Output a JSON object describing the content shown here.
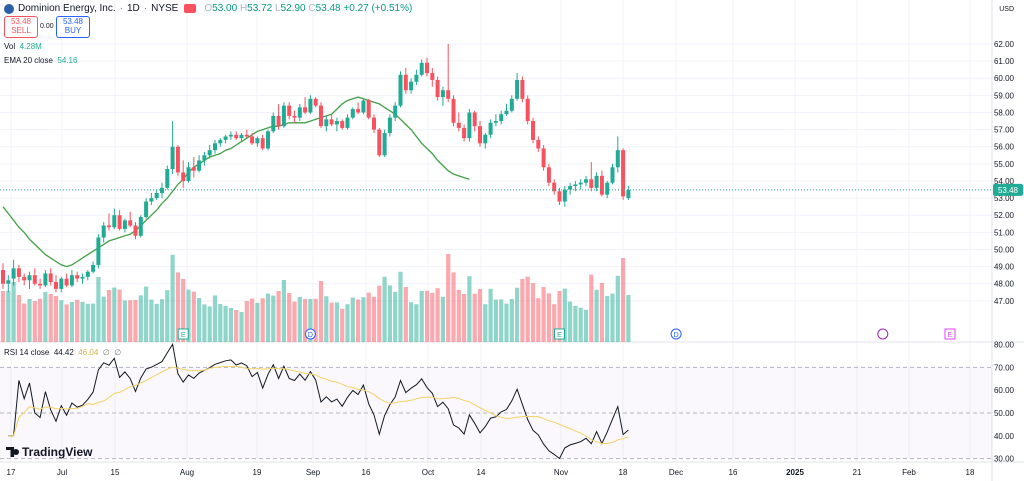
{
  "header": {
    "symbol": "Dominion Energy, Inc.",
    "interval": "1D",
    "exchange": "NYSE",
    "ohlc": {
      "o": "53.00",
      "h": "53.72",
      "l": "52.90",
      "c": "53.48",
      "change": "+0.27 (+0.51%)"
    }
  },
  "trade": {
    "sell_price": "53.48",
    "sell_label": "SELL",
    "buy_price": "53.48",
    "buy_label": "BUY",
    "spread": "0.00"
  },
  "indicators": {
    "vol_label": "Vol",
    "vol_value": "4.28M",
    "ema_label": "EMA 20 close",
    "ema_value": "54.16",
    "rsi_label": "RSI 14 close",
    "rsi_value": "44.42",
    "rsi_ma_value": "46.04",
    "rsi_extra1": "∅",
    "rsi_extra2": "∅"
  },
  "currency": "USD",
  "logo_text": "TradingView",
  "colors": {
    "up": "#22ab94",
    "down": "#f7525f",
    "ema": "#43a047",
    "rsi": "#131722",
    "rsi_ma": "#f2d267",
    "grid": "#f0f3fa"
  },
  "chart_data": {
    "type": "candlestick",
    "price_axis": {
      "ticks": [
        "62.00",
        "61.00",
        "60.00",
        "59.00",
        "58.00",
        "57.00",
        "56.00",
        "55.00",
        "54.00",
        "53.00",
        "52.00",
        "51.00",
        "50.00",
        "49.00",
        "48.00",
        "47.00"
      ],
      "last_price": "53.48",
      "ylim": [
        46.7,
        62.7
      ]
    },
    "rsi_axis": {
      "ticks": [
        "80.00",
        "70.00",
        "60.00",
        "50.00",
        "40.00",
        "30.00"
      ],
      "ylim": [
        25,
        82
      ]
    },
    "x_labels": [
      "17",
      "Jul",
      "15",
      "Aug",
      "19",
      "Sep",
      "16",
      "Oct",
      "14",
      "Nov",
      "18",
      "Dec",
      "16",
      "2025",
      "21",
      "Feb",
      "18"
    ],
    "events": [
      {
        "type": "E",
        "index": 34
      },
      {
        "type": "D",
        "index": 58
      },
      {
        "type": "E",
        "index": 105
      },
      {
        "type": "D",
        "index": 127
      },
      {
        "type": "flash",
        "index": 166
      },
      {
        "type": "E",
        "index": 178
      }
    ],
    "candles": [
      {
        "o": 48.8,
        "h": 49.2,
        "l": 47.7,
        "c": 48.0
      },
      {
        "o": 48.0,
        "h": 48.5,
        "l": 47.5,
        "c": 48.2
      },
      {
        "o": 48.3,
        "h": 49.4,
        "l": 47.9,
        "c": 48.9
      },
      {
        "o": 48.9,
        "h": 49.1,
        "l": 48.1,
        "c": 48.4
      },
      {
        "o": 48.4,
        "h": 48.6,
        "l": 47.9,
        "c": 48.2
      },
      {
        "o": 48.2,
        "h": 48.7,
        "l": 47.7,
        "c": 48.5
      },
      {
        "o": 48.5,
        "h": 48.9,
        "l": 47.9,
        "c": 48.0
      },
      {
        "o": 48.0,
        "h": 48.3,
        "l": 47.7,
        "c": 47.9
      },
      {
        "o": 47.9,
        "h": 48.8,
        "l": 47.8,
        "c": 48.6
      },
      {
        "o": 48.6,
        "h": 48.9,
        "l": 47.9,
        "c": 48.1
      },
      {
        "o": 48.1,
        "h": 48.5,
        "l": 47.5,
        "c": 47.7
      },
      {
        "o": 47.7,
        "h": 48.4,
        "l": 47.5,
        "c": 48.3
      },
      {
        "o": 48.3,
        "h": 48.6,
        "l": 47.8,
        "c": 47.9
      },
      {
        "o": 47.9,
        "h": 48.8,
        "l": 47.8,
        "c": 48.5
      },
      {
        "o": 48.5,
        "h": 48.7,
        "l": 48.1,
        "c": 48.3
      },
      {
        "o": 48.3,
        "h": 48.6,
        "l": 48.0,
        "c": 48.4
      },
      {
        "o": 48.4,
        "h": 48.8,
        "l": 48.2,
        "c": 48.7
      },
      {
        "o": 48.7,
        "h": 49.3,
        "l": 48.6,
        "c": 49.1
      },
      {
        "o": 49.1,
        "h": 50.9,
        "l": 48.9,
        "c": 50.7
      },
      {
        "o": 50.7,
        "h": 51.6,
        "l": 50.4,
        "c": 51.4
      },
      {
        "o": 51.4,
        "h": 52.1,
        "l": 51.1,
        "c": 51.3
      },
      {
        "o": 51.3,
        "h": 52.4,
        "l": 51.2,
        "c": 52.0
      },
      {
        "o": 52.0,
        "h": 52.3,
        "l": 51.1,
        "c": 51.2
      },
      {
        "o": 51.2,
        "h": 51.8,
        "l": 51.0,
        "c": 51.7
      },
      {
        "o": 51.7,
        "h": 52.2,
        "l": 51.3,
        "c": 51.4
      },
      {
        "o": 51.4,
        "h": 51.6,
        "l": 50.6,
        "c": 50.8
      },
      {
        "o": 50.8,
        "h": 52.0,
        "l": 50.7,
        "c": 51.9
      },
      {
        "o": 51.9,
        "h": 53.0,
        "l": 51.8,
        "c": 52.8
      },
      {
        "o": 52.8,
        "h": 53.3,
        "l": 52.6,
        "c": 53.0
      },
      {
        "o": 53.0,
        "h": 53.5,
        "l": 52.9,
        "c": 53.3
      },
      {
        "o": 53.3,
        "h": 53.9,
        "l": 53.0,
        "c": 53.6
      },
      {
        "o": 53.6,
        "h": 54.9,
        "l": 53.5,
        "c": 54.7
      },
      {
        "o": 54.7,
        "h": 57.5,
        "l": 54.4,
        "c": 56.0
      },
      {
        "o": 56.0,
        "h": 56.1,
        "l": 54.3,
        "c": 54.5
      },
      {
        "o": 54.5,
        "h": 55.2,
        "l": 53.6,
        "c": 54.0
      },
      {
        "o": 54.0,
        "h": 55.1,
        "l": 53.9,
        "c": 54.8
      },
      {
        "o": 54.8,
        "h": 55.4,
        "l": 54.2,
        "c": 54.6
      },
      {
        "o": 54.6,
        "h": 55.5,
        "l": 54.5,
        "c": 55.2
      },
      {
        "o": 55.2,
        "h": 55.7,
        "l": 54.9,
        "c": 55.5
      },
      {
        "o": 55.5,
        "h": 56.1,
        "l": 55.3,
        "c": 55.8
      },
      {
        "o": 55.8,
        "h": 56.4,
        "l": 55.6,
        "c": 56.2
      },
      {
        "o": 56.2,
        "h": 56.5,
        "l": 56.0,
        "c": 56.4
      },
      {
        "o": 56.4,
        "h": 56.7,
        "l": 56.2,
        "c": 56.6
      },
      {
        "o": 56.6,
        "h": 56.9,
        "l": 56.4,
        "c": 56.7
      },
      {
        "o": 56.7,
        "h": 56.9,
        "l": 56.4,
        "c": 56.5
      },
      {
        "o": 56.5,
        "h": 56.8,
        "l": 56.3,
        "c": 56.7
      },
      {
        "o": 56.7,
        "h": 57.0,
        "l": 56.5,
        "c": 56.6
      },
      {
        "o": 56.6,
        "h": 56.8,
        "l": 56.1,
        "c": 56.2
      },
      {
        "o": 56.2,
        "h": 56.6,
        "l": 56.0,
        "c": 56.5
      },
      {
        "o": 56.5,
        "h": 56.7,
        "l": 55.8,
        "c": 55.9
      },
      {
        "o": 55.9,
        "h": 57.0,
        "l": 55.8,
        "c": 56.9
      },
      {
        "o": 56.9,
        "h": 58.0,
        "l": 56.8,
        "c": 57.8
      },
      {
        "o": 57.8,
        "h": 58.5,
        "l": 57.0,
        "c": 57.2
      },
      {
        "o": 57.2,
        "h": 58.6,
        "l": 57.1,
        "c": 58.4
      },
      {
        "o": 58.4,
        "h": 58.6,
        "l": 57.6,
        "c": 57.8
      },
      {
        "o": 57.8,
        "h": 58.1,
        "l": 57.4,
        "c": 57.7
      },
      {
        "o": 57.7,
        "h": 58.5,
        "l": 57.5,
        "c": 58.3
      },
      {
        "o": 58.3,
        "h": 58.9,
        "l": 57.9,
        "c": 58.0
      },
      {
        "o": 58.0,
        "h": 59.0,
        "l": 57.9,
        "c": 58.8
      },
      {
        "o": 58.8,
        "h": 58.9,
        "l": 58.3,
        "c": 58.4
      },
      {
        "o": 58.4,
        "h": 58.6,
        "l": 57.1,
        "c": 57.2
      },
      {
        "o": 57.2,
        "h": 57.8,
        "l": 56.9,
        "c": 57.6
      },
      {
        "o": 57.6,
        "h": 57.9,
        "l": 57.2,
        "c": 57.3
      },
      {
        "o": 57.3,
        "h": 57.7,
        "l": 56.9,
        "c": 57.5
      },
      {
        "o": 57.5,
        "h": 57.6,
        "l": 57.0,
        "c": 57.1
      },
      {
        "o": 57.1,
        "h": 57.9,
        "l": 57.0,
        "c": 57.7
      },
      {
        "o": 57.7,
        "h": 58.3,
        "l": 57.6,
        "c": 58.2
      },
      {
        "o": 58.2,
        "h": 58.6,
        "l": 57.9,
        "c": 58.0
      },
      {
        "o": 58.0,
        "h": 58.8,
        "l": 57.9,
        "c": 58.7
      },
      {
        "o": 58.7,
        "h": 58.8,
        "l": 57.6,
        "c": 57.7
      },
      {
        "o": 57.7,
        "h": 57.9,
        "l": 56.8,
        "c": 57.0
      },
      {
        "o": 57.0,
        "h": 57.1,
        "l": 55.4,
        "c": 55.5
      },
      {
        "o": 55.5,
        "h": 57.0,
        "l": 55.4,
        "c": 56.8
      },
      {
        "o": 56.8,
        "h": 57.9,
        "l": 56.6,
        "c": 57.7
      },
      {
        "o": 57.7,
        "h": 58.6,
        "l": 57.5,
        "c": 58.4
      },
      {
        "o": 58.4,
        "h": 60.4,
        "l": 58.3,
        "c": 60.2
      },
      {
        "o": 60.2,
        "h": 60.6,
        "l": 59.1,
        "c": 59.3
      },
      {
        "o": 59.3,
        "h": 60.0,
        "l": 59.1,
        "c": 59.8
      },
      {
        "o": 59.8,
        "h": 60.5,
        "l": 59.6,
        "c": 60.2
      },
      {
        "o": 60.2,
        "h": 61.1,
        "l": 60.1,
        "c": 60.9
      },
      {
        "o": 60.9,
        "h": 61.2,
        "l": 60.1,
        "c": 60.3
      },
      {
        "o": 60.3,
        "h": 60.6,
        "l": 59.5,
        "c": 59.9
      },
      {
        "o": 59.9,
        "h": 60.1,
        "l": 58.7,
        "c": 58.9
      },
      {
        "o": 58.9,
        "h": 59.5,
        "l": 58.4,
        "c": 59.3
      },
      {
        "o": 59.3,
        "h": 62.0,
        "l": 58.6,
        "c": 58.8
      },
      {
        "o": 58.8,
        "h": 59.0,
        "l": 57.2,
        "c": 57.4
      },
      {
        "o": 57.4,
        "h": 58.0,
        "l": 56.9,
        "c": 57.1
      },
      {
        "o": 57.1,
        "h": 57.3,
        "l": 56.3,
        "c": 56.5
      },
      {
        "o": 56.5,
        "h": 58.2,
        "l": 56.3,
        "c": 58.0
      },
      {
        "o": 58.0,
        "h": 58.1,
        "l": 56.9,
        "c": 57.2
      },
      {
        "o": 57.2,
        "h": 57.5,
        "l": 56.0,
        "c": 56.2
      },
      {
        "o": 56.2,
        "h": 56.8,
        "l": 55.9,
        "c": 56.7
      },
      {
        "o": 56.7,
        "h": 57.6,
        "l": 56.5,
        "c": 57.4
      },
      {
        "o": 57.4,
        "h": 57.9,
        "l": 57.2,
        "c": 57.5
      },
      {
        "o": 57.5,
        "h": 58.1,
        "l": 57.3,
        "c": 57.9
      },
      {
        "o": 57.9,
        "h": 58.5,
        "l": 57.8,
        "c": 58.1
      },
      {
        "o": 58.1,
        "h": 59.0,
        "l": 58.0,
        "c": 58.8
      },
      {
        "o": 58.8,
        "h": 60.3,
        "l": 58.7,
        "c": 59.9
      },
      {
        "o": 59.9,
        "h": 60.1,
        "l": 58.6,
        "c": 58.8
      },
      {
        "o": 58.8,
        "h": 59.0,
        "l": 57.3,
        "c": 57.5
      },
      {
        "o": 57.5,
        "h": 57.7,
        "l": 56.2,
        "c": 56.4
      },
      {
        "o": 56.4,
        "h": 56.6,
        "l": 55.7,
        "c": 55.9
      },
      {
        "o": 55.9,
        "h": 56.1,
        "l": 54.6,
        "c": 54.8
      },
      {
        "o": 54.8,
        "h": 55.0,
        "l": 53.7,
        "c": 53.9
      },
      {
        "o": 53.9,
        "h": 54.1,
        "l": 53.2,
        "c": 53.4
      },
      {
        "o": 53.4,
        "h": 53.6,
        "l": 52.6,
        "c": 52.8
      },
      {
        "o": 52.8,
        "h": 53.7,
        "l": 52.5,
        "c": 53.5
      },
      {
        "o": 53.5,
        "h": 53.9,
        "l": 53.2,
        "c": 53.7
      },
      {
        "o": 53.7,
        "h": 54.0,
        "l": 53.4,
        "c": 53.8
      },
      {
        "o": 53.8,
        "h": 54.1,
        "l": 53.5,
        "c": 53.9
      },
      {
        "o": 53.9,
        "h": 54.3,
        "l": 53.7,
        "c": 54.1
      },
      {
        "o": 54.1,
        "h": 55.1,
        "l": 53.4,
        "c": 53.6
      },
      {
        "o": 53.6,
        "h": 54.5,
        "l": 53.4,
        "c": 54.3
      },
      {
        "o": 54.3,
        "h": 54.6,
        "l": 53.1,
        "c": 53.2
      },
      {
        "o": 53.2,
        "h": 54.0,
        "l": 53.0,
        "c": 53.9
      },
      {
        "o": 53.9,
        "h": 55.0,
        "l": 53.8,
        "c": 54.8
      },
      {
        "o": 54.8,
        "h": 56.6,
        "l": 54.5,
        "c": 55.8
      },
      {
        "o": 55.8,
        "h": 55.9,
        "l": 52.9,
        "c": 53.1
      },
      {
        "o": 53.0,
        "h": 53.72,
        "l": 52.9,
        "c": 53.48
      }
    ],
    "ema": [
      52.5,
      52.1,
      51.7,
      51.3,
      51.0,
      50.6,
      50.3,
      50.0,
      49.7,
      49.5,
      49.3,
      49.1,
      49.0,
      49.1,
      49.3,
      49.5,
      49.7,
      49.9,
      50.1,
      50.3,
      50.5,
      50.6,
      50.7,
      50.8,
      50.9,
      51.1,
      51.4,
      51.7,
      52.0,
      52.3,
      52.7,
      53.0,
      53.4,
      53.8,
      54.1,
      54.5,
      54.8,
      55.0,
      55.2,
      55.4,
      55.5,
      55.6,
      55.8,
      55.9,
      56.1,
      56.3,
      56.5,
      56.7,
      56.9,
      57.0,
      57.1,
      57.2,
      57.2,
      57.3,
      57.4,
      57.4,
      57.4,
      57.4,
      57.5,
      57.6,
      57.7,
      57.8,
      57.9,
      58.2,
      58.5,
      58.7,
      58.8,
      58.9,
      58.8,
      58.7,
      58.6,
      58.5,
      58.3,
      58.1,
      57.9,
      57.6,
      57.3,
      57.0,
      56.6,
      56.2,
      55.9,
      55.6,
      55.2,
      54.9,
      54.6,
      54.4,
      54.3,
      54.2,
      54.1
    ],
    "volume": [],
    "rsi": [],
    "rsi_ma": []
  }
}
